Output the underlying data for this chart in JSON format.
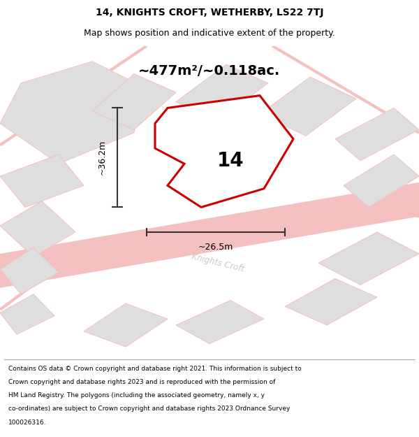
{
  "title_line1": "14, KNIGHTS CROFT, WETHERBY, LS22 7TJ",
  "title_line2": "Map shows position and indicative extent of the property.",
  "area_text": "~477m²/~0.118ac.",
  "number_label": "14",
  "dim_height": "~36.2m",
  "dim_width": "~26.5m",
  "street_label": "Knights Croft",
  "footer_lines": [
    "Contains OS data © Crown copyright and database right 2021. This information is subject to",
    "Crown copyright and database rights 2023 and is reproduced with the permission of",
    "HM Land Registry. The polygons (including the associated geometry, namely x, y",
    "co-ordinates) are subject to Crown copyright and database rights 2023 Ordnance Survey",
    "100026316."
  ],
  "map_bg": "#ebebeb",
  "property_fill": "#ffffff",
  "property_edge": "#cc0000",
  "building_fill": "#dedede",
  "road_color": "#f5c0c0",
  "dim_line_color": "#333333",
  "text_color": "#000000",
  "footer_bg": "#ffffff",
  "street_text_color": "#c8c8c8"
}
